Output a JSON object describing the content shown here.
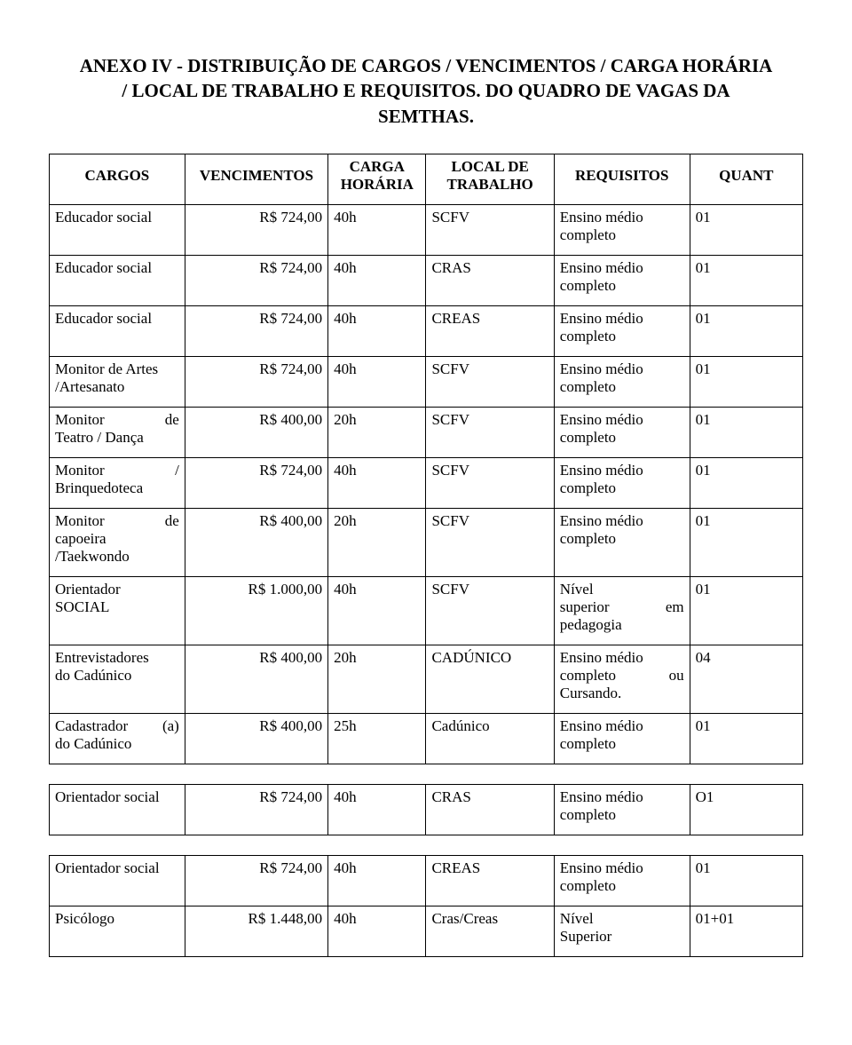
{
  "title_l1": "ANEXO IV - DISTRIBUIÇÃO DE CARGOS / VENCIMENTOS / CARGA HORÁRIA",
  "title_l2": "/ LOCAL DE TRABALHO E REQUISITOS. DO QUADRO DE VAGAS DA",
  "title_l3": "SEMTHAS.",
  "h_cargos": "CARGOS",
  "h_venc": "VENCIMENTOS",
  "h_carga1": "CARGA",
  "h_carga2": "HORÁRIA",
  "h_local1": "LOCAL DE",
  "h_local2": "TRABALHO",
  "h_req": "REQUISITOS",
  "h_quant": "QUANT",
  "r1": {
    "a": "Educador social",
    "b": "R$ 724,00",
    "c": "40h",
    "d": "SCFV",
    "e1": "Ensino médio",
    "e2": "completo",
    "f": "01"
  },
  "r2": {
    "a": "Educador social",
    "b": "R$ 724,00",
    "c": "40h",
    "d": "CRAS",
    "e1": "Ensino médio",
    "e2": "completo",
    "f": "01"
  },
  "r3": {
    "a": "Educador social",
    "b": "R$ 724,00",
    "c": "40h",
    "d": "CREAS",
    "e1": "Ensino médio",
    "e2": "completo",
    "f": "01"
  },
  "r4": {
    "a1": "Monitor de Artes",
    "a2": "/Artesanato",
    "b": "R$ 724,00",
    "c": "40h",
    "d": "SCFV",
    "e1": "Ensino médio",
    "e2": "completo",
    "f": "01"
  },
  "r5": {
    "a1": "Monitor",
    "a1b": "de",
    "a2": "Teatro / Dança",
    "b": "R$ 400,00",
    "c": "20h",
    "d": "SCFV",
    "e1": "Ensino médio",
    "e2": "completo",
    "f": "01"
  },
  "r6": {
    "a1": "Monitor",
    "a1b": "/",
    "a2": "Brinquedoteca",
    "b": "R$ 724,00",
    "c": "40h",
    "d": "SCFV",
    "e1": "Ensino médio",
    "e2": "completo",
    "f": "01"
  },
  "r7": {
    "a1": "Monitor",
    "a1b": "de",
    "a2": "capoeira",
    "a3": "/Taekwondo",
    "b": "R$ 400,00",
    "c": "20h",
    "d": "SCFV",
    "e1": "Ensino médio",
    "e2": "completo",
    "f": "01"
  },
  "r8": {
    "a1": "Orientador",
    "a2": "SOCIAL",
    "b": "R$ 1.000,00",
    "c": "40h",
    "d": "SCFV",
    "e1": "Nível",
    "e2": "superior",
    "e2b": "em",
    "e3": "pedagogia",
    "f": "01"
  },
  "r9": {
    "a1": "Entrevistadores",
    "a2": "do Cadúnico",
    "b": "R$ 400,00",
    "c": "20h",
    "d": "CADÚNICO",
    "e1": "Ensino médio",
    "e2": "completo",
    "e2b": "ou",
    "e3": "Cursando.",
    "f": "04"
  },
  "r10": {
    "a1": "Cadastrador",
    "a1b": "(a)",
    "a2": "do Cadúnico",
    "b": "R$ 400,00",
    "c": "25h",
    "d": "Cadúnico",
    "e1": "Ensino médio",
    "e2": "completo",
    "f": "01"
  },
  "t2": {
    "r1": {
      "a": "Orientador social",
      "b": "R$ 724,00",
      "c": "40h",
      "d": "CRAS",
      "e1": "Ensino médio",
      "e2": "completo",
      "f": "O1"
    }
  },
  "t3": {
    "r1": {
      "a": "Orientador social",
      "b": "R$ 724,00",
      "c": "40h",
      "d": "CREAS",
      "e1": "Ensino médio",
      "e2": "completo",
      "f": "01"
    },
    "r2": {
      "a": "Psicólogo",
      "b": "R$ 1.448,00",
      "c": "40h",
      "d": "Cras/Creas",
      "e1": "Nível",
      "e2": "Superior",
      "f": "01+01"
    }
  }
}
